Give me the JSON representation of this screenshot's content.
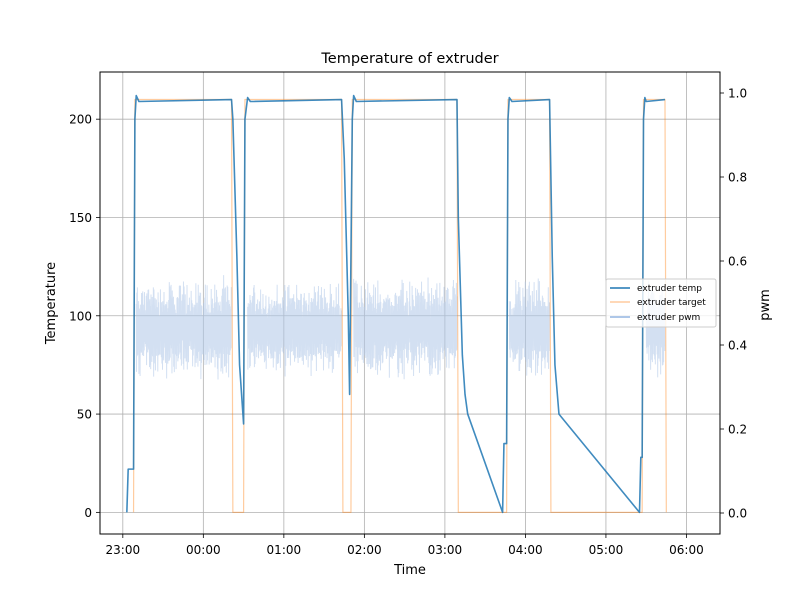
{
  "chart_data": {
    "type": "line",
    "title": "Temperature of extruder",
    "xlabel": "Time",
    "ylabel": "Temperature",
    "y2label": "pwm",
    "x_ticks": [
      "23:00",
      "00:00",
      "01:00",
      "02:00",
      "03:00",
      "04:00",
      "05:00",
      "06:00"
    ],
    "y_ticks": [
      "0",
      "50",
      "100",
      "150",
      "200"
    ],
    "y2_ticks": [
      "0.0",
      "0.2",
      "0.4",
      "0.6",
      "0.8",
      "1.0"
    ],
    "x_range_minutes_from_2300": [
      -17,
      445
    ],
    "ylim": [
      -11,
      224
    ],
    "y2lim": [
      -0.05,
      1.05
    ],
    "grid": true,
    "legend_position": "center-right",
    "colors": {
      "extruder_temp": "#1f77b4",
      "extruder_target": "#ff7f0e",
      "extruder_pwm": "#aec7e8"
    },
    "series": [
      {
        "name": "extruder temp",
        "axis": "left",
        "points": [
          [
            "23:03",
            0
          ],
          [
            "23:04",
            22
          ],
          [
            "23:08",
            22
          ],
          [
            "23:09",
            200
          ],
          [
            "23:10",
            212
          ],
          [
            "23:12",
            209
          ],
          [
            "00:21",
            210
          ],
          [
            "00:22",
            200
          ],
          [
            "00:25",
            130
          ],
          [
            "00:27",
            75
          ],
          [
            "00:30",
            45
          ],
          [
            "00:31",
            200
          ],
          [
            "00:33",
            211
          ],
          [
            "00:35",
            209
          ],
          [
            "01:43",
            210
          ],
          [
            "01:45",
            180
          ],
          [
            "01:48",
            100
          ],
          [
            "01:49",
            60
          ],
          [
            "01:51",
            200
          ],
          [
            "01:52",
            212
          ],
          [
            "01:54",
            209
          ],
          [
            "03:09",
            210
          ],
          [
            "03:10",
            150
          ],
          [
            "03:13",
            80
          ],
          [
            "03:15",
            60
          ],
          [
            "03:17",
            50
          ],
          [
            "03:43",
            0
          ],
          [
            "03:44",
            35
          ],
          [
            "03:46",
            35
          ],
          [
            "03:47",
            200
          ],
          [
            "03:48",
            211
          ],
          [
            "03:50",
            209
          ],
          [
            "04:18",
            210
          ],
          [
            "04:20",
            130
          ],
          [
            "04:22",
            75
          ],
          [
            "04:25",
            50
          ],
          [
            "05:25",
            0
          ],
          [
            "05:26",
            28
          ],
          [
            "05:27",
            28
          ],
          [
            "05:28",
            200
          ],
          [
            "05:29",
            211
          ],
          [
            "05:30",
            209
          ],
          [
            "05:44",
            210
          ]
        ]
      },
      {
        "name": "extruder target",
        "axis": "left",
        "points": [
          [
            "23:08",
            0
          ],
          [
            "23:09",
            210
          ],
          [
            "00:21",
            210
          ],
          [
            "00:22",
            0
          ],
          [
            "00:30",
            0
          ],
          [
            "00:31",
            210
          ],
          [
            "01:43",
            210
          ],
          [
            "01:44",
            0
          ],
          [
            "01:50",
            0
          ],
          [
            "01:51",
            210
          ],
          [
            "03:09",
            210
          ],
          [
            "03:10",
            0
          ],
          [
            "03:46",
            0
          ],
          [
            "03:47",
            210
          ],
          [
            "04:18",
            210
          ],
          [
            "04:19",
            0
          ],
          [
            "05:27",
            0
          ],
          [
            "05:28",
            210
          ],
          [
            "05:44",
            210
          ],
          [
            "05:45",
            0
          ]
        ]
      },
      {
        "name": "extruder pwm",
        "axis": "right",
        "segments": [
          {
            "start": "23:10",
            "end": "00:21",
            "center": 0.44,
            "amplitude_min": 0.06,
            "amplitude_max": 0.13
          },
          {
            "start": "00:33",
            "end": "01:43",
            "center": 0.44,
            "amplitude_min": 0.06,
            "amplitude_max": 0.12
          },
          {
            "start": "01:52",
            "end": "03:09",
            "center": 0.44,
            "amplitude_min": 0.06,
            "amplitude_max": 0.13
          },
          {
            "start": "03:48",
            "end": "04:18",
            "center": 0.44,
            "amplitude_min": 0.06,
            "amplitude_max": 0.13
          },
          {
            "start": "05:30",
            "end": "05:44",
            "center": 0.44,
            "amplitude_min": 0.06,
            "amplitude_max": 0.12
          }
        ]
      }
    ]
  }
}
